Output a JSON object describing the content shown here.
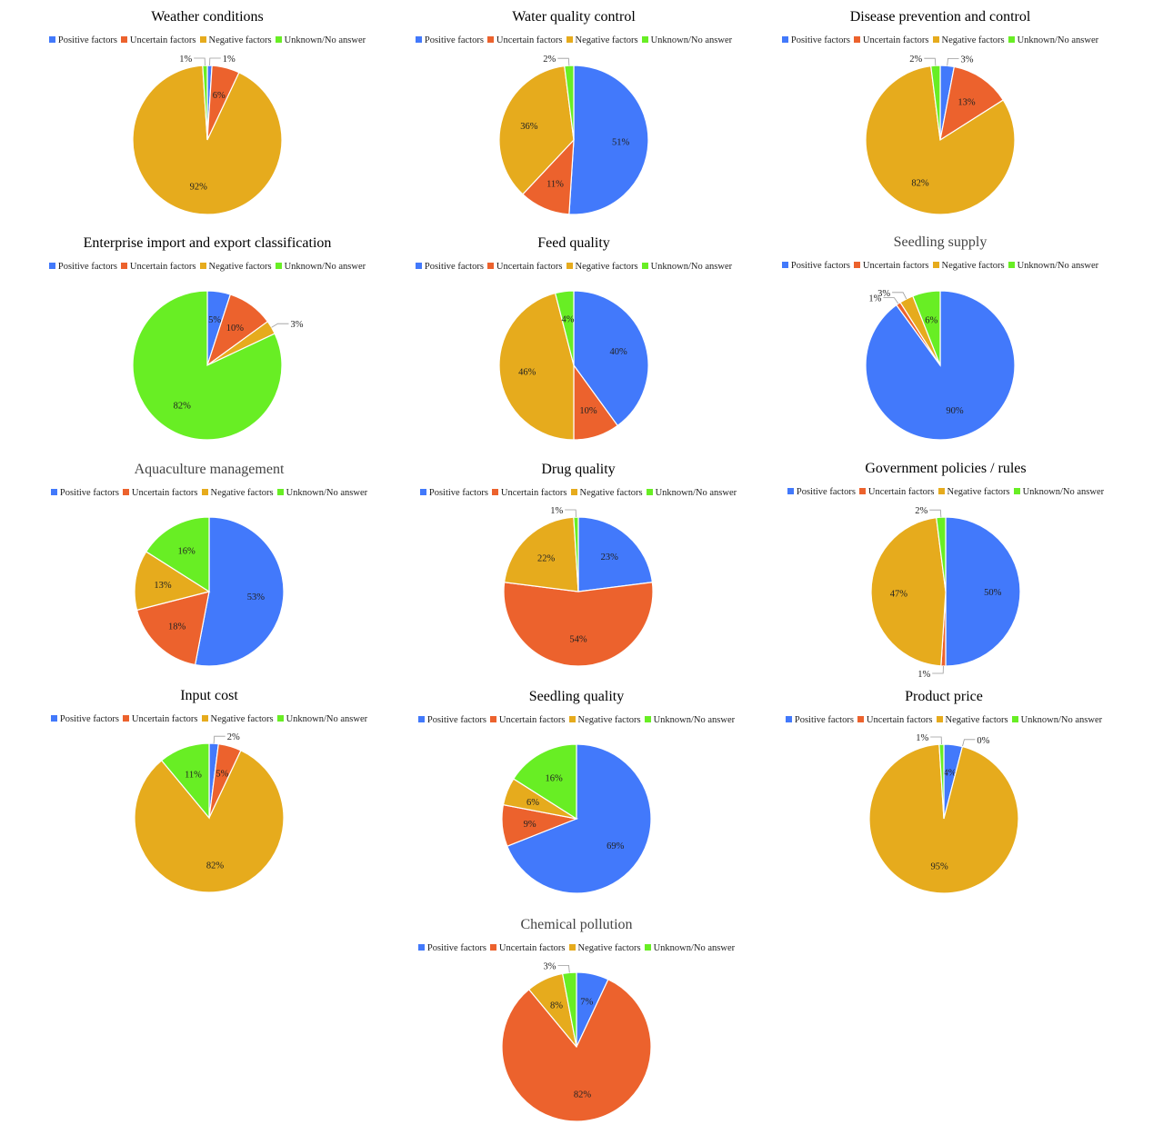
{
  "colors": {
    "positive": "#4279fb",
    "uncertain": "#ec622d",
    "negative": "#e6ab1d",
    "unknown": "#68ee24"
  },
  "legend": [
    "Positive factors",
    "Uncertain factors",
    "Negative factors",
    "Unknown/No answer"
  ],
  "chart_data": [
    {
      "type": "pie",
      "title": "Weather conditions",
      "labels": [
        "Positive factors",
        "Uncertain factors",
        "Negative factors",
        "Unknown/No answer"
      ],
      "values": [
        1,
        6,
        92,
        1
      ],
      "value_labels": [
        "1%",
        "6%",
        "92%",
        "1%"
      ]
    },
    {
      "type": "pie",
      "title": "Water quality control",
      "labels": [
        "Positive factors",
        "Uncertain factors",
        "Negative factors",
        "Unknown/No answer"
      ],
      "values": [
        51,
        11,
        36,
        2
      ],
      "value_labels": [
        "51%",
        "11%",
        "36%",
        "2%"
      ]
    },
    {
      "type": "pie",
      "title": "Disease prevention and control",
      "labels": [
        "Positive factors",
        "Uncertain factors",
        "Negative factors",
        "Unknown/No answer"
      ],
      "values": [
        3,
        13,
        82,
        2
      ],
      "value_labels": [
        "3%",
        "13%",
        "82%",
        "2%"
      ]
    },
    {
      "type": "pie",
      "title": "Enterprise import and export classification",
      "labels": [
        "Positive factors",
        "Uncertain factors",
        "Negative factors",
        "Unknown/No answer"
      ],
      "values": [
        5,
        10,
        3,
        82
      ],
      "value_labels": [
        "5%",
        "10%",
        "3%",
        "82%"
      ]
    },
    {
      "type": "pie",
      "title": "Feed quality",
      "labels": [
        "Positive factors",
        "Uncertain factors",
        "Negative factors",
        "Unknown/No answer"
      ],
      "values": [
        40,
        10,
        46,
        4
      ],
      "value_labels": [
        "40%",
        "10%",
        "46%",
        "4%"
      ]
    },
    {
      "type": "pie",
      "title": "Seedling supply",
      "labels": [
        "Positive factors",
        "Uncertain factors",
        "Negative factors",
        "Unknown/No answer"
      ],
      "values": [
        90,
        1,
        3,
        6
      ],
      "value_labels": [
        "90%",
        "1%",
        "3%",
        "6%"
      ]
    },
    {
      "type": "pie",
      "title": "Aquaculture management",
      "labels": [
        "Positive factors",
        "Uncertain factors",
        "Negative factors",
        "Unknown/No answer"
      ],
      "values": [
        53,
        18,
        13,
        16
      ],
      "value_labels": [
        "53%",
        "18%",
        "13%",
        "16%"
      ]
    },
    {
      "type": "pie",
      "title": "Drug quality",
      "labels": [
        "Positive factors",
        "Uncertain factors",
        "Negative factors",
        "Unknown/No answer"
      ],
      "values": [
        23,
        54,
        22,
        1
      ],
      "value_labels": [
        "23%",
        "54%",
        "22%",
        "1%"
      ]
    },
    {
      "type": "pie",
      "title": "Government policies / rules",
      "labels": [
        "Positive factors",
        "Uncertain factors",
        "Negative factors",
        "Unknown/No answer"
      ],
      "values": [
        50,
        1,
        47,
        2
      ],
      "value_labels": [
        "50%",
        "1%",
        "47%",
        "2%"
      ]
    },
    {
      "type": "pie",
      "title": "Input cost",
      "labels": [
        "Positive factors",
        "Uncertain factors",
        "Negative factors",
        "Unknown/No answer"
      ],
      "values": [
        2,
        5,
        82,
        11
      ],
      "value_labels": [
        "2%",
        "5%",
        "82%",
        "11%"
      ]
    },
    {
      "type": "pie",
      "title": "Seedling quality",
      "labels": [
        "Positive factors",
        "Uncertain factors",
        "Negative factors",
        "Unknown/No answer"
      ],
      "values": [
        69,
        9,
        6,
        16
      ],
      "value_labels": [
        "69%",
        "9%",
        "6%",
        "16%"
      ]
    },
    {
      "type": "pie",
      "title": "Product price",
      "labels": [
        "Positive factors",
        "Uncertain factors",
        "Negative factors",
        "Unknown/No answer"
      ],
      "values": [
        4,
        0,
        95,
        1
      ],
      "value_labels": [
        "4%",
        "0%",
        "95%",
        "1%"
      ]
    },
    {
      "type": "pie",
      "title": "Chemical pollution",
      "labels": [
        "Positive factors",
        "Uncertain factors",
        "Negative factors",
        "Unknown/No answer"
      ],
      "values": [
        7,
        82,
        8,
        3
      ],
      "value_labels": [
        "7%",
        "82%",
        "8%",
        "3%"
      ]
    }
  ]
}
